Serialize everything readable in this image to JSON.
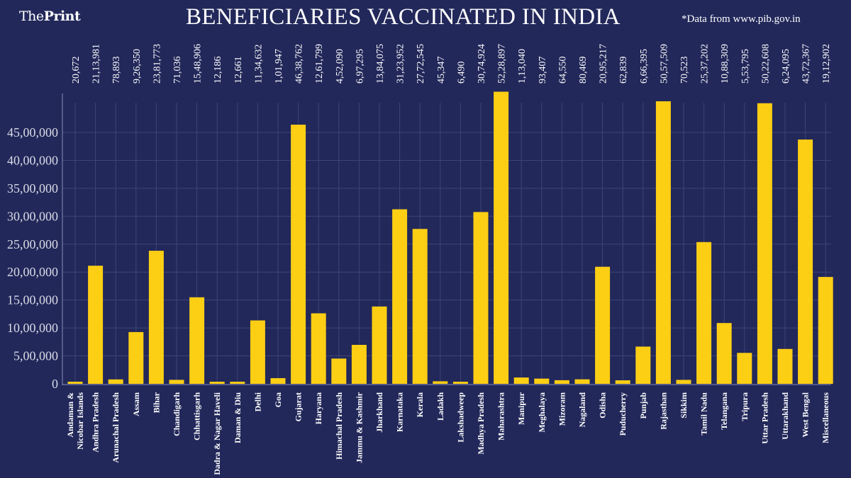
{
  "header": {
    "logo_the": "The",
    "logo_print": "Print",
    "title": "BENEFICIARIES VACCINATED IN INDIA",
    "source": "*Data from www.pib.gov.in"
  },
  "colors": {
    "background": "#22285a",
    "bar": "#fcce14",
    "grid": "#3d4478",
    "text": "#ffffff"
  },
  "chart_data": {
    "type": "bar",
    "title": "BENEFICIARIES VACCINATED IN INDIA",
    "xlabel": "",
    "ylabel": "",
    "ylim": [
      0,
      5000000
    ],
    "yticks": [
      0,
      500000,
      1000000,
      1500000,
      2000000,
      2500000,
      3000000,
      3500000,
      4000000,
      4500000
    ],
    "ytick_labels": [
      "0",
      "5,00,000",
      "10,00,000",
      "15,00,000",
      "20,00,000",
      "25,00,000",
      "30,00,000",
      "35,00,000",
      "40,00,000",
      "45,00,000"
    ],
    "grid": true,
    "categories": [
      [
        "Andaman &",
        "Nicobar Islands"
      ],
      [
        "Andhra Pradesh"
      ],
      [
        "Arunachal Pradesh"
      ],
      [
        "Assam"
      ],
      [
        "Bihar"
      ],
      [
        "Chandigarh"
      ],
      [
        "Chhattisgarh"
      ],
      [
        "Dadra & Nagar Haveli"
      ],
      [
        "Daman & Diu"
      ],
      [
        "Delhi"
      ],
      [
        "Goa"
      ],
      [
        "Gujarat"
      ],
      [
        "Haryana"
      ],
      [
        "Himachal Pradesh"
      ],
      [
        "Jammu & Kashmir"
      ],
      [
        "Jharkhand"
      ],
      [
        "Karnataka"
      ],
      [
        "Kerala"
      ],
      [
        "Ladakh"
      ],
      [
        "Lakshadweep"
      ],
      [
        "Madhya Pradesh"
      ],
      [
        "Maharashtra"
      ],
      [
        "Manipur"
      ],
      [
        "Meghalaya"
      ],
      [
        "Mizoram"
      ],
      [
        "Nagaland"
      ],
      [
        "Odisha"
      ],
      [
        "Puducherry"
      ],
      [
        "Punjab"
      ],
      [
        "Rajasthan"
      ],
      [
        "Sikkim"
      ],
      [
        "Tamil Nadu"
      ],
      [
        "Telangana"
      ],
      [
        "Tripura"
      ],
      [
        "Uttar Pradesh"
      ],
      [
        "Uttarakhand"
      ],
      [
        "West Bengal"
      ],
      [
        "Miscellaneous"
      ]
    ],
    "values": [
      20672,
      2113981,
      78893,
      926350,
      2381773,
      71036,
      1548906,
      12186,
      12661,
      1134632,
      101947,
      4638762,
      1261799,
      452090,
      697295,
      1384075,
      3123952,
      2772545,
      45347,
      6490,
      3074924,
      5228897,
      113040,
      93407,
      64550,
      80469,
      2095217,
      62839,
      666395,
      5057509,
      70523,
      2537202,
      1088309,
      553795,
      5022608,
      624095,
      4372367,
      1912902
    ],
    "data_labels": [
      "20,672",
      "21,13,981",
      "78,893",
      "9,26,350",
      "23,81,773",
      "71,036",
      "15,48,906",
      "12,186",
      "12,661",
      "11,34,632",
      "1,01,947",
      "46,38,762",
      "12,61,799",
      "4,52,090",
      "6,97,295",
      "13,84,075",
      "31,23,952",
      "27,72,545",
      "45,347",
      "6,490",
      "30,74,924",
      "52,28,897",
      "1,13,040",
      "93,407",
      "64,550",
      "80,469",
      "20,95,217",
      "62,839",
      "6,66,395",
      "50,57,509",
      "70,523",
      "25,37,202",
      "10,88,309",
      "5,53,795",
      "50,22,608",
      "6,24,095",
      "43,72,367",
      "19,12,902"
    ]
  }
}
